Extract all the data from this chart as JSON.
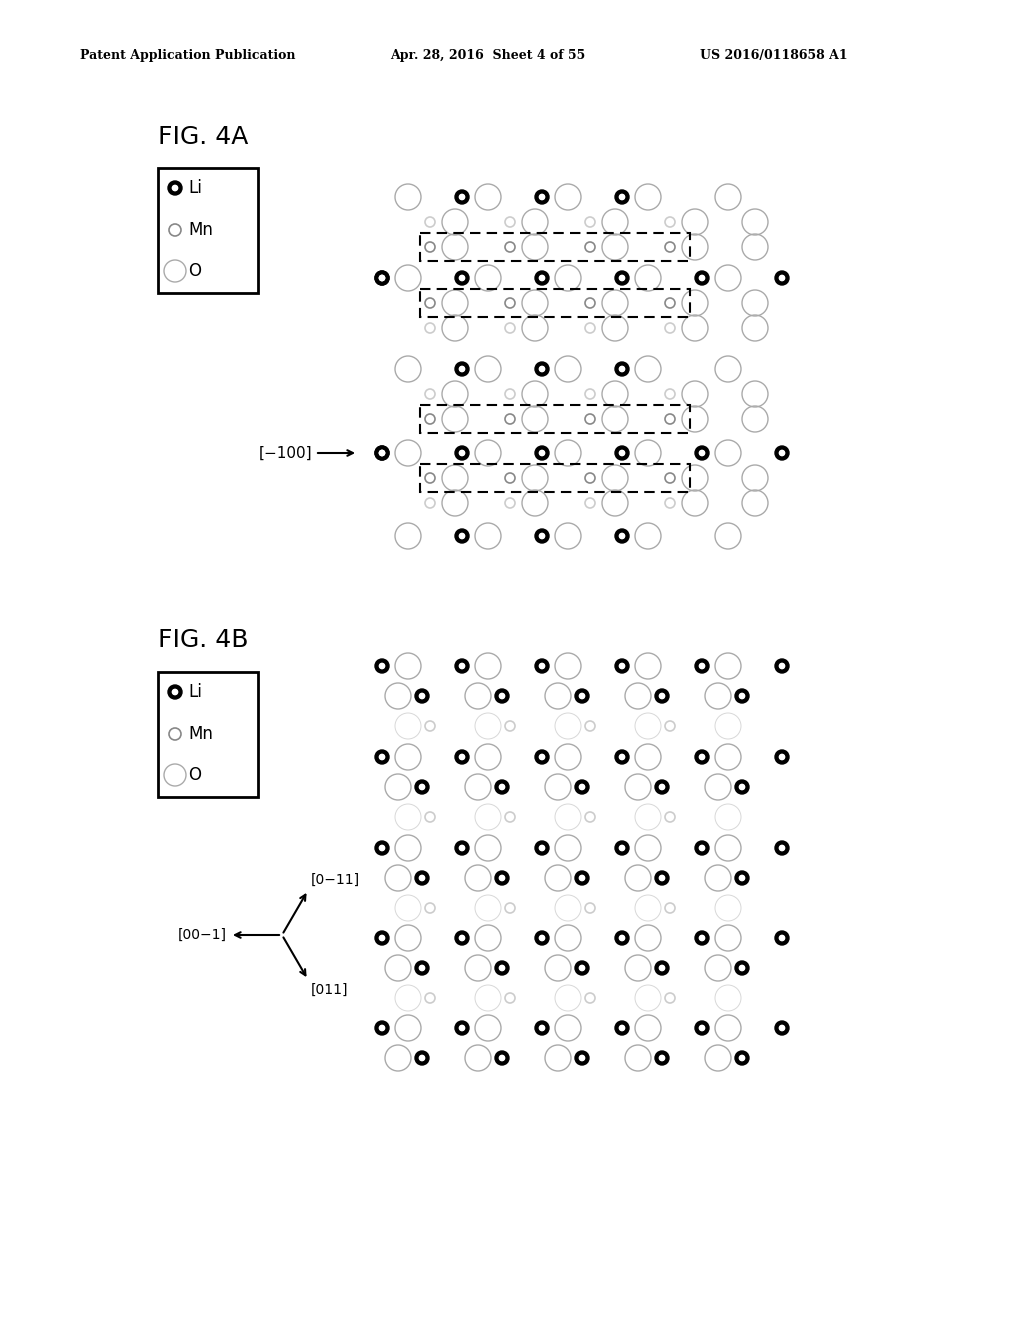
{
  "header_left": "Patent Application Publication",
  "header_center": "Apr. 28, 2016  Sheet 4 of 55",
  "header_right": "US 2016/0118658 A1",
  "fig4a_label": "FIG. 4A",
  "fig4b_label": "FIG. 4B",
  "direction_4a": "[−100]",
  "direction_4b_labels": [
    "[0−11]",
    "[00−1]",
    "[011]"
  ],
  "bg_color": "#ffffff"
}
